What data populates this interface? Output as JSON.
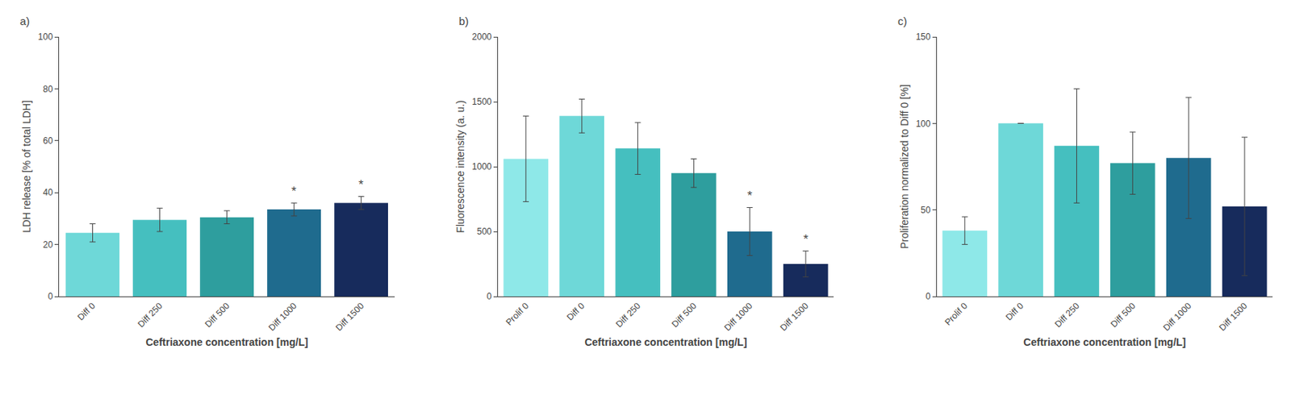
{
  "chart_data": [
    {
      "type": "bar",
      "title": "a)",
      "categories": [
        "Diff 0",
        "Diff 250",
        "Diff 500",
        "Diff 1000",
        "Diff 1500"
      ],
      "values": [
        24.5,
        29.5,
        30.5,
        33.5,
        36.0
      ],
      "errors": [
        3.5,
        4.5,
        2.5,
        2.5,
        2.5
      ],
      "colors": [
        "#6ED8D8",
        "#45BFBF",
        "#2E9E9E",
        "#1F6B8E",
        "#172B5C"
      ],
      "ylabel": "LDH release [% of total LDH]",
      "xlabel": "Ceftriaxone concentration [mg/L]",
      "ylim": [
        0,
        100
      ],
      "yticks": [
        0,
        20,
        40,
        60,
        80,
        100
      ],
      "grid": false,
      "annotations": [
        {
          "x": "Diff 1000",
          "text": "*"
        },
        {
          "x": "Diff 1500",
          "text": "*"
        }
      ]
    },
    {
      "type": "bar",
      "title": "b)",
      "categories": [
        "Prolif 0",
        "Diff 0",
        "Diff 250",
        "Diff 500",
        "Diff 1000",
        "Diff 1500"
      ],
      "values": [
        1060,
        1390,
        1140,
        950,
        500,
        250
      ],
      "errors": [
        330,
        130,
        200,
        110,
        185,
        100
      ],
      "colors": [
        "#8EE8E8",
        "#6ED8D8",
        "#45BFBF",
        "#2E9E9E",
        "#1F6B8E",
        "#172B5C"
      ],
      "ylabel": "Fluorescence intensity (a. u.)",
      "xlabel": "Ceftriaxone concentration [mg/L]",
      "ylim": [
        0,
        2000
      ],
      "yticks": [
        0,
        500,
        1000,
        1500,
        2000
      ],
      "grid": false,
      "annotations": [
        {
          "x": "Diff 1000",
          "text": "*"
        },
        {
          "x": "Diff 1500",
          "text": "*"
        }
      ]
    },
    {
      "type": "bar",
      "title": "c)",
      "categories": [
        "Prolif 0",
        "Diff 0",
        "Diff 250",
        "Diff 500",
        "Diff 1000",
        "Diff 1500"
      ],
      "values": [
        38,
        100,
        87,
        77,
        80,
        52
      ],
      "errors": [
        8,
        0,
        33,
        18,
        35,
        40
      ],
      "colors": [
        "#8EE8E8",
        "#6ED8D8",
        "#45BFBF",
        "#2E9E9E",
        "#1F6B8E",
        "#172B5C"
      ],
      "ylabel": "Proliferation normalized to Diff 0 [%]",
      "xlabel": "Ceftriaxone concentration [mg/L]",
      "ylim": [
        0,
        150
      ],
      "yticks": [
        0,
        50,
        100,
        150
      ],
      "grid": false
    }
  ]
}
